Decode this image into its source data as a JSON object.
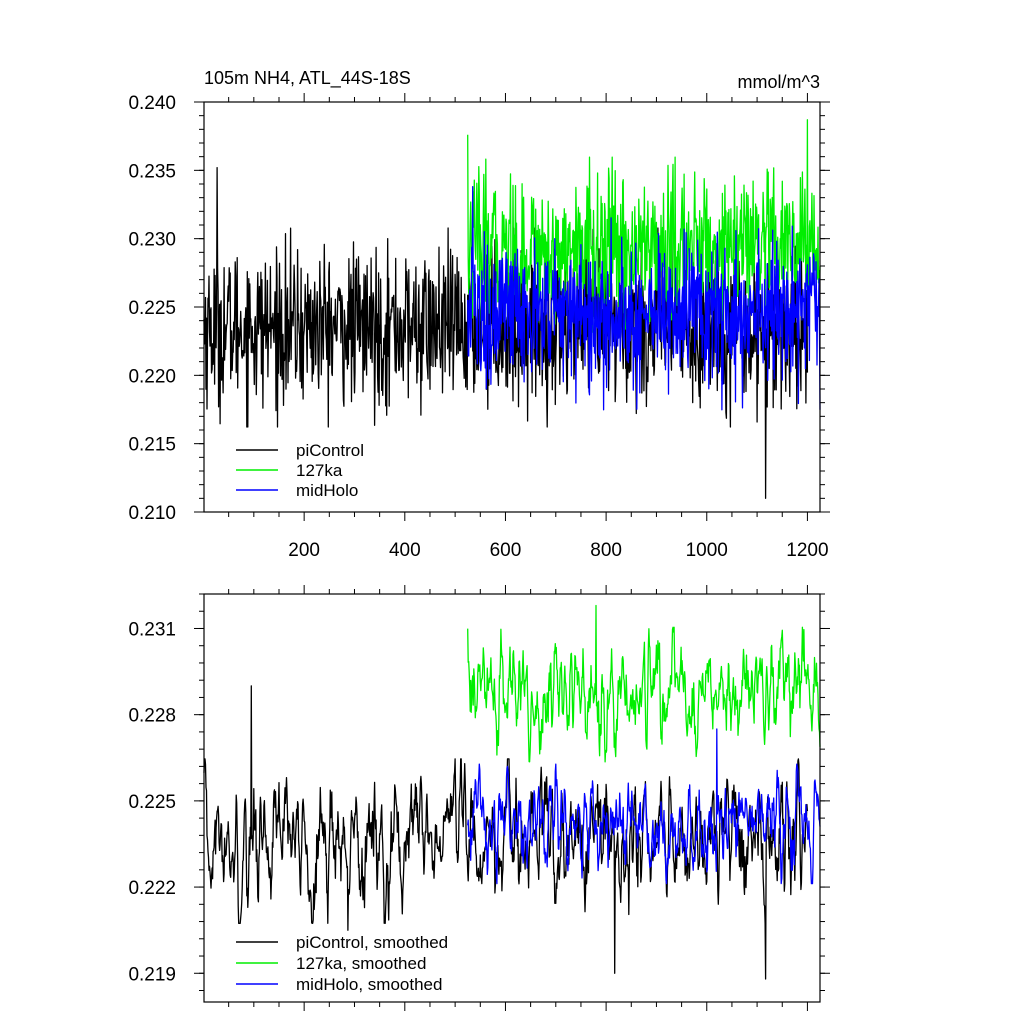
{
  "chart_data": [
    {
      "type": "line",
      "title": "105m NH4, ATL_44S-18S",
      "units": "mmol/m^3",
      "xlabel": "",
      "ylabel": "",
      "xlim": [
        1,
        1225
      ],
      "ylim": [
        0.21,
        0.24
      ],
      "xticks": [
        200,
        400,
        600,
        800,
        1000,
        1200
      ],
      "xtick_labels": [
        "200",
        "400",
        "600",
        "800",
        "1000",
        "1200"
      ],
      "yticks": [
        0.21,
        0.215,
        0.22,
        0.225,
        0.23,
        0.235,
        0.24
      ],
      "ytick_labels": [
        "0.210",
        "0.215",
        "0.220",
        "0.225",
        "0.230",
        "0.235",
        "0.240"
      ],
      "grid": false,
      "legend_position": "bottom-left",
      "series": [
        {
          "name": "piControl",
          "color": "#000000",
          "x_start": 1,
          "x_end": 1200,
          "mean": 0.2235,
          "amplitude": 0.0028,
          "spike_x": [
            27,
            1117
          ],
          "spike_y": [
            0.2352,
            0.211
          ]
        },
        {
          "name": "127ka",
          "color": "#00ee00",
          "x_start": 525,
          "x_end": 1225,
          "mean": 0.2292,
          "amplitude": 0.0026,
          "spike_x": [
            525,
            1200
          ],
          "spike_y": [
            0.2376,
            0.2387
          ]
        },
        {
          "name": "midHolo",
          "color": "#0000ff",
          "x_start": 525,
          "x_end": 1225,
          "mean": 0.2245,
          "amplitude": 0.0027,
          "spike_x": [
            535
          ],
          "spike_y": [
            0.2338
          ]
        }
      ]
    },
    {
      "type": "line",
      "title": "",
      "xlabel": "",
      "ylabel": "",
      "xlim": [
        1,
        1225
      ],
      "ylim": [
        0.218,
        0.2322
      ],
      "xticks": [
        200,
        400,
        600,
        800,
        1000,
        1200
      ],
      "yticks": [
        0.219,
        0.222,
        0.225,
        0.228,
        0.231
      ],
      "ytick_labels": [
        "0.219",
        "0.222",
        "0.225",
        "0.228",
        "0.231"
      ],
      "grid": false,
      "legend_position": "bottom-left",
      "series": [
        {
          "name": "piControl, smoothed",
          "color": "#000000",
          "x_start": 1,
          "x_end": 1200,
          "mean": 0.2236,
          "amplitude": 0.0011,
          "spike_x": [
            95,
            287,
            817,
            1117
          ],
          "spike_y": [
            0.229,
            0.2205,
            0.219,
            0.2188
          ]
        },
        {
          "name": "127ka, smoothed",
          "color": "#00ee00",
          "x_start": 525,
          "x_end": 1225,
          "mean": 0.2287,
          "amplitude": 0.0009,
          "spike_x": [
            780
          ],
          "spike_y": [
            0.2318
          ]
        },
        {
          "name": "midHolo, smoothed",
          "color": "#0000ff",
          "x_start": 525,
          "x_end": 1225,
          "mean": 0.2242,
          "amplitude": 0.0008,
          "spike_x": [
            1020
          ],
          "spike_y": [
            0.2275
          ]
        }
      ]
    }
  ]
}
